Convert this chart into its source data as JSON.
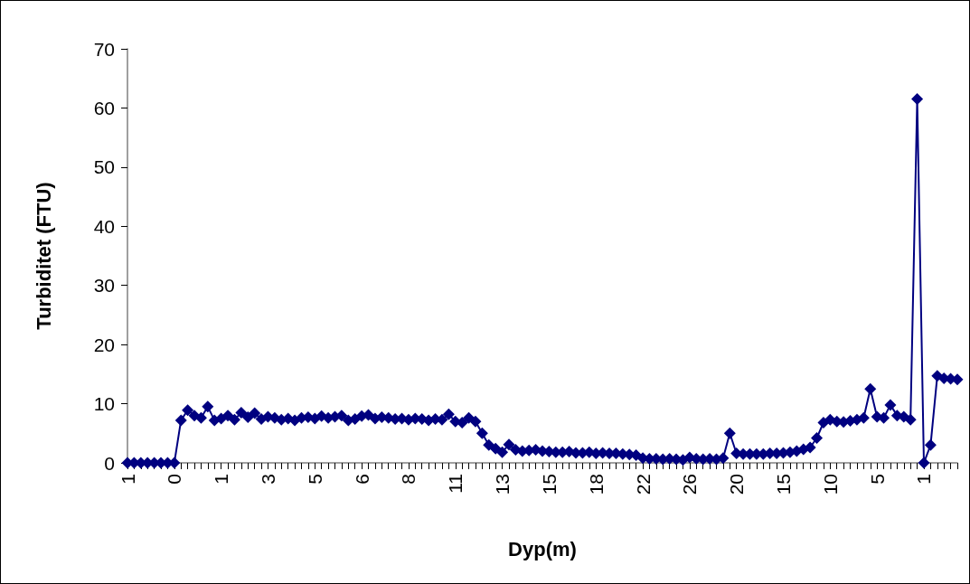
{
  "chart_data": {
    "type": "line",
    "xlabel": "Dyp(m)",
    "ylabel": "Turbiditet (FTU)",
    "categories": [
      "1",
      null,
      null,
      null,
      null,
      null,
      null,
      "0",
      null,
      null,
      null,
      null,
      null,
      null,
      "1",
      null,
      null,
      null,
      null,
      null,
      null,
      "3",
      null,
      null,
      null,
      null,
      null,
      null,
      "5",
      null,
      null,
      null,
      null,
      null,
      null,
      "6",
      null,
      null,
      null,
      null,
      null,
      null,
      "8",
      null,
      null,
      null,
      null,
      null,
      null,
      "11",
      null,
      null,
      null,
      null,
      null,
      null,
      "13",
      null,
      null,
      null,
      null,
      null,
      null,
      "15",
      null,
      null,
      null,
      null,
      null,
      null,
      "18",
      null,
      null,
      null,
      null,
      null,
      null,
      "22",
      null,
      null,
      null,
      null,
      null,
      null,
      "26",
      null,
      null,
      null,
      null,
      null,
      null,
      "20",
      null,
      null,
      null,
      null,
      null,
      null,
      "15",
      null,
      null,
      null,
      null,
      null,
      null,
      "10",
      null,
      null,
      null,
      null,
      null,
      null,
      "5",
      null,
      null,
      null,
      null,
      null,
      null,
      "1",
      null,
      null,
      null,
      null,
      null
    ],
    "series": [
      {
        "color": "#000080",
        "values": [
          0,
          0,
          0,
          0,
          0,
          0,
          0,
          0,
          7.2,
          8.9,
          8.0,
          7.6,
          9.5,
          7.2,
          7.5,
          8.0,
          7.3,
          8.5,
          7.7,
          8.4,
          7.4,
          7.8,
          7.6,
          7.3,
          7.5,
          7.2,
          7.6,
          7.7,
          7.5,
          7.9,
          7.6,
          7.8,
          8.0,
          7.2,
          7.4,
          7.9,
          8.1,
          7.5,
          7.7,
          7.6,
          7.4,
          7.5,
          7.3,
          7.5,
          7.4,
          7.2,
          7.4,
          7.3,
          8.2,
          7.0,
          6.8,
          7.6,
          7.0,
          5.0,
          3.0,
          2.4,
          1.8,
          3.1,
          2.2,
          2.0,
          2.1,
          2.2,
          2.0,
          1.9,
          1.8,
          1.8,
          1.9,
          1.7,
          1.7,
          1.8,
          1.6,
          1.7,
          1.6,
          1.6,
          1.5,
          1.4,
          1.3,
          0.8,
          0.7,
          0.7,
          0.6,
          0.7,
          0.6,
          0.5,
          0.9,
          0.7,
          0.6,
          0.7,
          0.6,
          0.8,
          5.0,
          1.6,
          1.5,
          1.5,
          1.5,
          1.5,
          1.6,
          1.6,
          1.7,
          1.8,
          2.0,
          2.3,
          2.6,
          4.2,
          6.8,
          7.3,
          7.0,
          6.9,
          7.1,
          7.3,
          7.6,
          12.5,
          7.8,
          7.6,
          9.8,
          8.0,
          7.8,
          7.3,
          61.5,
          0,
          3.0,
          14.7,
          14.3,
          14.2,
          14.1
        ]
      }
    ],
    "ylim": [
      0,
      70
    ],
    "yticks": [
      0,
      10,
      20,
      30,
      40,
      50,
      60,
      70
    ],
    "marker": "diamond",
    "line_style": "solid"
  }
}
